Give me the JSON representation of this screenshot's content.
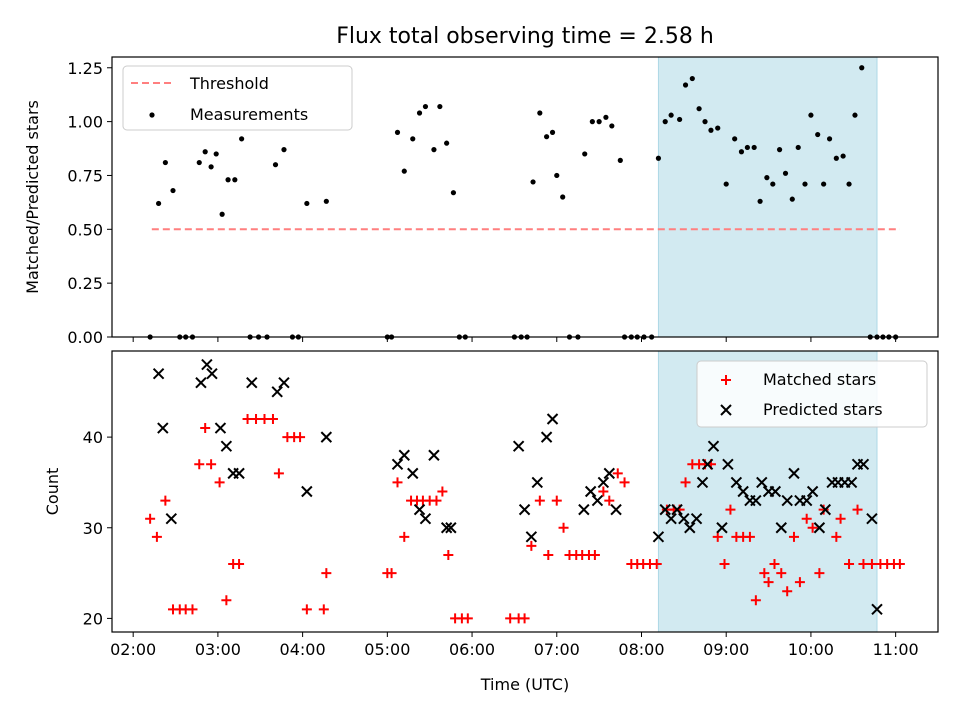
{
  "title": "Flux total observing time = 2.58 h",
  "colors": {
    "threshold": "#ff7f7f",
    "measurements": "#000000",
    "matched": "#ff0000",
    "predicted": "#000000",
    "highlight": "#add8e6"
  },
  "chart_data": [
    {
      "type": "scatter",
      "panel": "top",
      "ylabel": "Matched/Predicted stars",
      "xlabel": "",
      "x_unit": "hours UTC",
      "xlim": [
        1.75,
        11.5
      ],
      "ylim": [
        0,
        1.3
      ],
      "yticks": [
        0.0,
        0.25,
        0.5,
        0.75,
        1.0,
        1.25
      ],
      "ytick_labels": [
        "0.00",
        "0.25",
        "0.50",
        "0.75",
        "1.00",
        "1.25"
      ],
      "legend_position": "top-left",
      "highlight_span_x": [
        8.2,
        10.78
      ],
      "threshold": {
        "name": "Threshold",
        "y": 0.5,
        "x_range": [
          2.22,
          11.05
        ]
      },
      "series": [
        {
          "name": "Measurements",
          "x": [
            2.2,
            2.3,
            2.38,
            2.47,
            2.55,
            2.62,
            2.7,
            2.78,
            2.85,
            2.92,
            2.98,
            3.05,
            3.12,
            3.2,
            3.28,
            3.38,
            3.48,
            3.58,
            3.68,
            3.78,
            3.88,
            3.95,
            4.05,
            4.28,
            5.0,
            5.05,
            5.12,
            5.2,
            5.3,
            5.38,
            5.45,
            5.55,
            5.62,
            5.7,
            5.78,
            5.85,
            5.92,
            6.5,
            6.58,
            6.65,
            6.72,
            6.8,
            6.88,
            6.95,
            7.0,
            7.07,
            7.15,
            7.25,
            7.33,
            7.42,
            7.5,
            7.58,
            7.65,
            7.75,
            7.8,
            7.88,
            7.95,
            8.03,
            8.12,
            8.2,
            8.28,
            8.35,
            8.45,
            8.52,
            8.6,
            8.68,
            8.75,
            8.82,
            8.9,
            9.0,
            9.1,
            9.18,
            9.25,
            9.33,
            9.4,
            9.48,
            9.55,
            9.63,
            9.7,
            9.78,
            9.85,
            9.93,
            10.0,
            10.08,
            10.15,
            10.22,
            10.3,
            10.38,
            10.45,
            10.52,
            10.6,
            10.7,
            10.78,
            10.85,
            10.92,
            11.0
          ],
          "y": [
            0.0,
            0.62,
            0.81,
            0.68,
            0.0,
            0.0,
            0.0,
            0.81,
            0.86,
            0.79,
            0.85,
            0.57,
            0.73,
            0.73,
            0.92,
            0.0,
            0.0,
            0.0,
            0.8,
            0.87,
            0.0,
            0.0,
            0.62,
            0.63,
            0.0,
            0.0,
            0.95,
            0.77,
            0.92,
            1.04,
            1.07,
            0.87,
            1.07,
            0.9,
            0.67,
            0.0,
            0.0,
            0.0,
            0.0,
            0.0,
            0.72,
            1.04,
            0.93,
            0.95,
            0.75,
            0.65,
            0.0,
            0.0,
            0.85,
            1.0,
            1.0,
            1.02,
            0.98,
            0.82,
            0.0,
            0.0,
            0.0,
            0.0,
            0.0,
            0.83,
            1.0,
            1.03,
            1.01,
            1.17,
            1.2,
            1.06,
            1.0,
            0.96,
            0.97,
            0.71,
            0.92,
            0.86,
            0.88,
            0.88,
            0.63,
            0.74,
            0.71,
            0.87,
            0.76,
            0.64,
            0.88,
            0.71,
            1.03,
            0.94,
            0.71,
            0.92,
            0.83,
            0.84,
            0.71,
            1.03,
            1.25,
            0.0,
            0.0,
            0.0,
            0.0,
            0.0
          ]
        }
      ]
    },
    {
      "type": "scatter",
      "panel": "bottom",
      "ylabel": "Count",
      "xlabel": "Time (UTC)",
      "x_unit": "hours UTC",
      "xlim": [
        1.75,
        11.5
      ],
      "ylim": [
        18.5,
        49.5
      ],
      "yticks": [
        20,
        30,
        40
      ],
      "ytick_labels": [
        "20",
        "30",
        "40"
      ],
      "xticks": [
        2,
        3,
        4,
        5,
        6,
        7,
        8,
        9,
        10,
        11
      ],
      "xtick_labels": [
        "02:00",
        "03:00",
        "04:00",
        "05:00",
        "06:00",
        "07:00",
        "08:00",
        "09:00",
        "10:00",
        "11:00"
      ],
      "legend_position": "top-right",
      "highlight_span_x": [
        8.2,
        10.78
      ],
      "series": [
        {
          "name": "Matched stars",
          "marker": "plus",
          "x": [
            2.2,
            2.28,
            2.38,
            2.47,
            2.55,
            2.62,
            2.7,
            2.78,
            2.85,
            2.92,
            3.02,
            3.1,
            3.18,
            3.25,
            3.35,
            3.45,
            3.55,
            3.65,
            3.72,
            3.82,
            3.9,
            3.97,
            4.05,
            4.25,
            4.28,
            5.0,
            5.05,
            5.12,
            5.2,
            5.28,
            5.35,
            5.42,
            5.5,
            5.58,
            5.65,
            5.72,
            5.8,
            5.88,
            5.95,
            6.45,
            6.55,
            6.62,
            6.7,
            6.8,
            6.9,
            7.0,
            7.08,
            7.15,
            7.23,
            7.3,
            7.38,
            7.45,
            7.55,
            7.62,
            7.72,
            7.8,
            7.88,
            7.95,
            8.02,
            8.1,
            8.18,
            8.3,
            8.38,
            8.45,
            8.52,
            8.6,
            8.68,
            8.75,
            8.82,
            8.9,
            8.98,
            9.05,
            9.12,
            9.2,
            9.28,
            9.35,
            9.45,
            9.5,
            9.57,
            9.65,
            9.72,
            9.8,
            9.87,
            9.95,
            10.02,
            10.1,
            10.15,
            10.3,
            10.35,
            10.45,
            10.55,
            10.62,
            10.72,
            10.82,
            10.9,
            10.98,
            11.05
          ],
          "y": [
            31,
            29,
            33,
            21,
            21,
            21,
            21,
            37,
            41,
            37,
            35,
            22,
            26,
            26,
            42,
            42,
            42,
            42,
            36,
            40,
            40,
            40,
            21,
            21,
            25,
            25,
            25,
            35,
            29,
            33,
            33,
            33,
            33,
            33,
            34,
            27,
            20,
            20,
            20,
            20,
            20,
            20,
            28,
            33,
            27,
            33,
            30,
            27,
            27,
            27,
            27,
            27,
            34,
            33,
            36,
            35,
            26,
            26,
            26,
            26,
            26,
            32,
            32,
            32,
            35,
            37,
            37,
            37,
            37,
            29,
            26,
            32,
            29,
            29,
            29,
            22,
            25,
            24,
            26,
            25,
            23,
            29,
            24,
            31,
            30,
            25,
            32,
            29,
            31,
            26,
            32,
            26,
            26,
            26,
            26,
            26,
            26
          ]
        },
        {
          "name": "Predicted stars",
          "marker": "x",
          "x": [
            2.3,
            2.35,
            2.45,
            2.8,
            2.87,
            2.93,
            3.03,
            3.1,
            3.18,
            3.25,
            3.4,
            3.7,
            3.78,
            4.05,
            4.28,
            5.12,
            5.2,
            5.3,
            5.38,
            5.45,
            5.55,
            5.7,
            5.75,
            6.55,
            6.62,
            6.7,
            6.77,
            6.88,
            6.95,
            7.32,
            7.4,
            7.48,
            7.55,
            7.62,
            7.7,
            8.2,
            8.28,
            8.35,
            8.42,
            8.5,
            8.57,
            8.65,
            8.72,
            8.78,
            8.85,
            8.95,
            9.02,
            9.12,
            9.2,
            9.28,
            9.35,
            9.42,
            9.5,
            9.58,
            9.65,
            9.72,
            9.8,
            9.87,
            9.95,
            10.02,
            10.1,
            10.17,
            10.25,
            10.32,
            10.4,
            10.48,
            10.55,
            10.62,
            10.72,
            10.78
          ],
          "y": [
            47,
            41,
            31,
            46,
            48,
            47,
            41,
            39,
            36,
            36,
            46,
            45,
            46,
            34,
            40,
            37,
            38,
            36,
            32,
            31,
            38,
            30,
            30,
            39,
            32,
            29,
            35,
            40,
            42,
            32,
            34,
            33,
            35,
            36,
            32,
            29,
            32,
            31,
            32,
            31,
            30,
            31,
            35,
            37,
            39,
            30,
            37,
            35,
            34,
            33,
            33,
            35,
            34,
            34,
            30,
            33,
            36,
            33,
            33,
            34,
            30,
            32,
            35,
            35,
            35,
            35,
            37,
            37,
            31,
            21
          ]
        }
      ]
    }
  ]
}
